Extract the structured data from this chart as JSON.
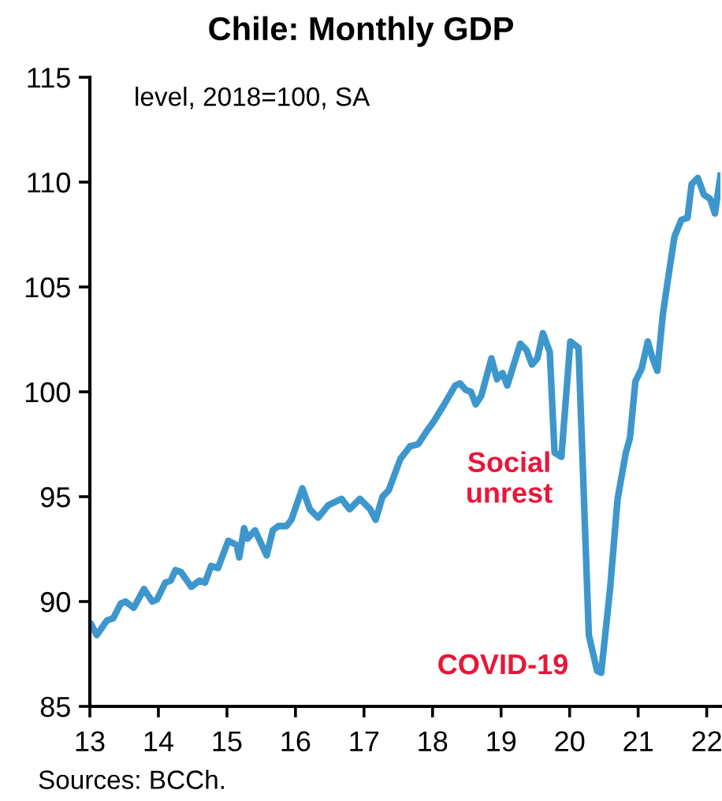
{
  "chart_data": {
    "type": "line",
    "title": "Chile: Monthly GDP",
    "subtitle": "level, 2018=100, SA",
    "x": [
      13.02,
      13.1,
      13.25,
      13.34,
      13.45,
      13.52,
      13.64,
      13.79,
      13.91,
      13.98,
      14.1,
      14.18,
      14.25,
      14.33,
      14.48,
      14.6,
      14.68,
      14.77,
      14.87,
      15.02,
      15.14,
      15.18,
      15.25,
      15.3,
      15.41,
      15.48,
      15.58,
      15.67,
      15.75,
      15.87,
      15.94,
      16.1,
      16.21,
      16.33,
      16.48,
      16.67,
      16.79,
      16.94,
      17.09,
      17.17,
      17.27,
      17.36,
      17.53,
      17.67,
      17.79,
      17.91,
      18.02,
      18.17,
      18.33,
      18.4,
      18.48,
      18.56,
      18.63,
      18.71,
      18.86,
      18.94,
      19.02,
      19.09,
      19.28,
      19.37,
      19.45,
      19.53,
      19.61,
      19.71,
      19.78,
      19.88,
      20.01,
      20.13,
      20.28,
      20.4,
      20.46,
      20.59,
      20.7,
      20.82,
      20.88,
      20.96,
      21.05,
      21.14,
      21.21,
      21.28,
      21.36,
      21.45,
      21.53,
      21.63,
      21.72,
      21.78,
      21.87,
      21.96,
      22.05,
      22.12,
      22.2
    ],
    "series": [
      {
        "color": "#3d97cd",
        "values": [
          88.9,
          88.4,
          89.1,
          89.2,
          89.9,
          90.0,
          89.7,
          90.6,
          90.0,
          90.1,
          90.9,
          91.0,
          91.5,
          91.4,
          90.7,
          91.0,
          90.9,
          91.7,
          91.6,
          92.9,
          92.7,
          92.1,
          93.5,
          93.0,
          93.4,
          92.9,
          92.2,
          93.4,
          93.6,
          93.6,
          93.9,
          95.4,
          94.4,
          94.0,
          94.6,
          94.9,
          94.4,
          94.9,
          94.4,
          93.9,
          95.0,
          95.3,
          96.8,
          97.4,
          97.5,
          98.1,
          98.6,
          99.4,
          100.3,
          100.4,
          100.1,
          100.0,
          99.4,
          99.8,
          101.6,
          100.6,
          100.9,
          100.3,
          102.3,
          102.0,
          101.3,
          101.6,
          102.8,
          101.9,
          97.1,
          96.9,
          102.4,
          102.1,
          88.4,
          86.7,
          86.6,
          90.6,
          94.9,
          97.1,
          97.8,
          100.5,
          101.1,
          102.4,
          101.6,
          101.0,
          103.7,
          105.7,
          107.4,
          108.2,
          108.3,
          109.9,
          110.2,
          109.4,
          109.2,
          108.5,
          110.3
        ]
      }
    ],
    "xlim": [
      13,
      22.2
    ],
    "xticks": [
      13,
      14,
      15,
      16,
      17,
      18,
      19,
      20,
      21,
      22
    ],
    "ylim": [
      85,
      115
    ],
    "yticks": [
      85,
      90,
      95,
      100,
      105,
      110,
      115
    ],
    "grid": false,
    "legend": false,
    "marker": "none",
    "line_style": "solid",
    "annotations": [
      "Social\nunrest",
      "COVID-19",
      "Sources: BCCh."
    ]
  }
}
